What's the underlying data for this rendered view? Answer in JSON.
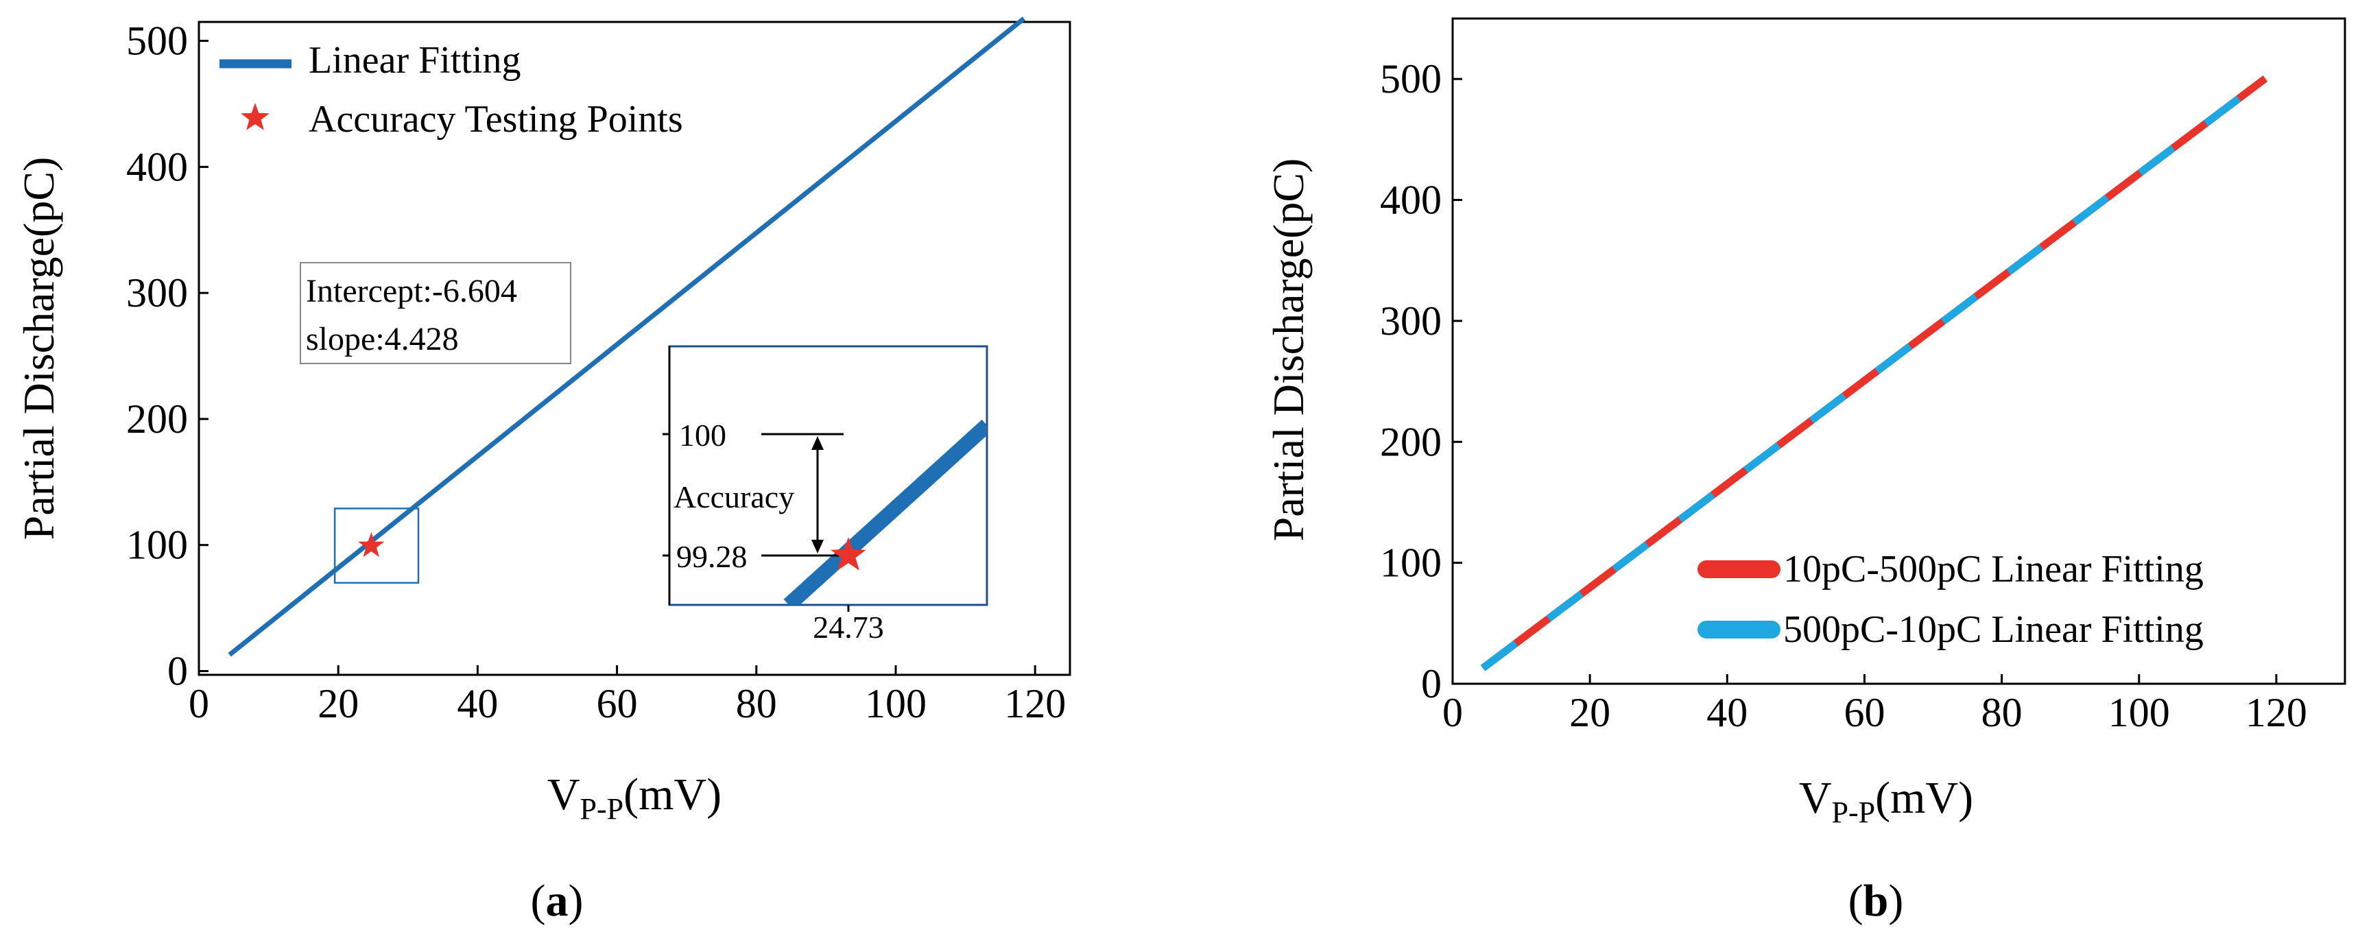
{
  "colors": {
    "fit_blue": "#1f6fb5",
    "star_red": "#e8322a",
    "up_red": "#e8322a",
    "down_cyan": "#1ea7e1",
    "axis": "#000000"
  },
  "panel_labels": {
    "a": {
      "open": "(",
      "letter": "a",
      "close": ")"
    },
    "b": {
      "open": "(",
      "letter": "b",
      "close": ")"
    }
  },
  "chart_data": [
    {
      "id": "a",
      "type": "line",
      "xlabel": {
        "main": "V",
        "sub": "P-P",
        "unit": "(mV)"
      },
      "ylabel": "Partial Discharge(pC)",
      "xlim": [
        0,
        125
      ],
      "ylim": [
        -3,
        515
      ],
      "xticks": [
        "0",
        "20",
        "40",
        "60",
        "80",
        "100",
        "120"
      ],
      "yticks": [
        "0",
        "100",
        "200",
        "300",
        "400",
        "500"
      ],
      "series": [
        {
          "name": "Linear Fitting",
          "kind": "line",
          "x": [
            4.4,
            118.4
          ],
          "y": [
            12.9,
            517.7
          ]
        },
        {
          "name": "Accuracy Testing Points",
          "kind": "star",
          "x": [
            24.73
          ],
          "y": [
            99.28
          ]
        }
      ],
      "legend": {
        "position": "top-left",
        "entries": [
          "Linear Fitting",
          "Accuracy Testing Points"
        ]
      },
      "annotation": {
        "lines": [
          "Intercept:-6.604",
          "slope:4.428"
        ]
      },
      "zoom_box": {
        "x": [
          19.5,
          31.5
        ],
        "y": [
          70,
          129
        ]
      },
      "inset": {
        "ref_label": "100",
        "measured_label": "99.28",
        "accuracy_label": "Accuracy",
        "x_label": "24.73"
      }
    },
    {
      "id": "b",
      "type": "line",
      "xlabel": {
        "main": "V",
        "sub": "P-P",
        "unit": "(mV)"
      },
      "ylabel": "Partial Discharge(pC)",
      "xlim": [
        0,
        130
      ],
      "ylim": [
        0,
        550
      ],
      "xticks": [
        "0",
        "20",
        "40",
        "60",
        "80",
        "100",
        "120"
      ],
      "yticks": [
        "0",
        "100",
        "200",
        "300",
        "400",
        "500"
      ],
      "series": [
        {
          "name": "10pC-500pC Linear Fitting",
          "kind": "dash",
          "x": [
            4.4,
            118.4
          ],
          "y": [
            12.9,
            500.4
          ]
        },
        {
          "name": "500pC-10pC Linear Fitting",
          "kind": "dash",
          "x": [
            4.4,
            118.4
          ],
          "y": [
            12.9,
            500.4
          ]
        }
      ],
      "legend": {
        "position": "bottom-right",
        "entries": [
          "10pC-500pC Linear Fitting",
          "500pC-10pC Linear Fitting"
        ]
      }
    }
  ]
}
